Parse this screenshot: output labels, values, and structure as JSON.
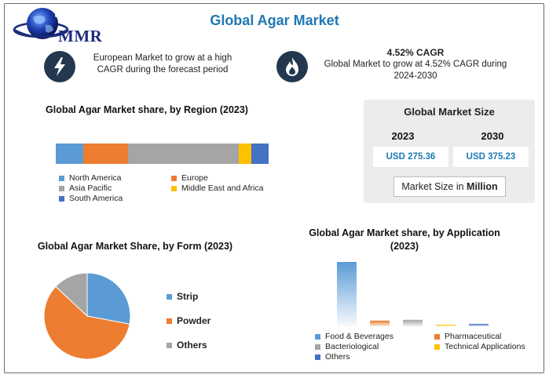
{
  "brand": {
    "logo_text": "MMR"
  },
  "title": "Global Agar Market",
  "highlights": [
    {
      "icon": "lightning-icon",
      "text": "European Market to grow at a high CAGR during the forecast period"
    },
    {
      "icon": "flame-icon",
      "heading": "4.52% CAGR",
      "text": "Global Market to grow at 4.52% CAGR during 2024-2030"
    }
  ],
  "market_size": {
    "title": "Global Market Size",
    "years": [
      "2023",
      "2030"
    ],
    "values": [
      "USD 275.36",
      "USD 375.23"
    ],
    "unit_prefix": "Market Size in ",
    "unit_bold": "Million"
  },
  "chart_data": [
    {
      "type": "bar",
      "stacked": true,
      "orientation": "horizontal",
      "title": "Global Agar Market share, by Region (2023)",
      "categories": [
        "North America",
        "Europe",
        "Asia Pacific",
        "Middle East and Africa",
        "South America"
      ],
      "values": [
        13,
        21,
        52,
        6,
        8
      ],
      "colors": [
        "#5b9bd5",
        "#ed7d31",
        "#a5a5a5",
        "#ffc000",
        "#4472c4"
      ]
    },
    {
      "type": "pie",
      "title": "Global Agar Market Share, by Form (2023)",
      "categories": [
        "Strip",
        "Powder",
        "Others"
      ],
      "values": [
        28,
        59,
        13
      ],
      "colors": [
        "#5b9bd5",
        "#ed7d31",
        "#a5a5a5"
      ]
    },
    {
      "type": "bar",
      "title": "Global Agar Market share, by Application (2023)",
      "categories": [
        "Food & Beverages",
        "Pharmaceutical",
        "Bacteriological",
        "Technical Applications",
        "Others"
      ],
      "values": [
        80,
        7,
        8,
        2,
        3
      ],
      "ylim": [
        0,
        80
      ],
      "colors": [
        "#5b9bd5",
        "#ed7d31",
        "#a5a5a5",
        "#ffc000",
        "#4472c4"
      ]
    }
  ]
}
